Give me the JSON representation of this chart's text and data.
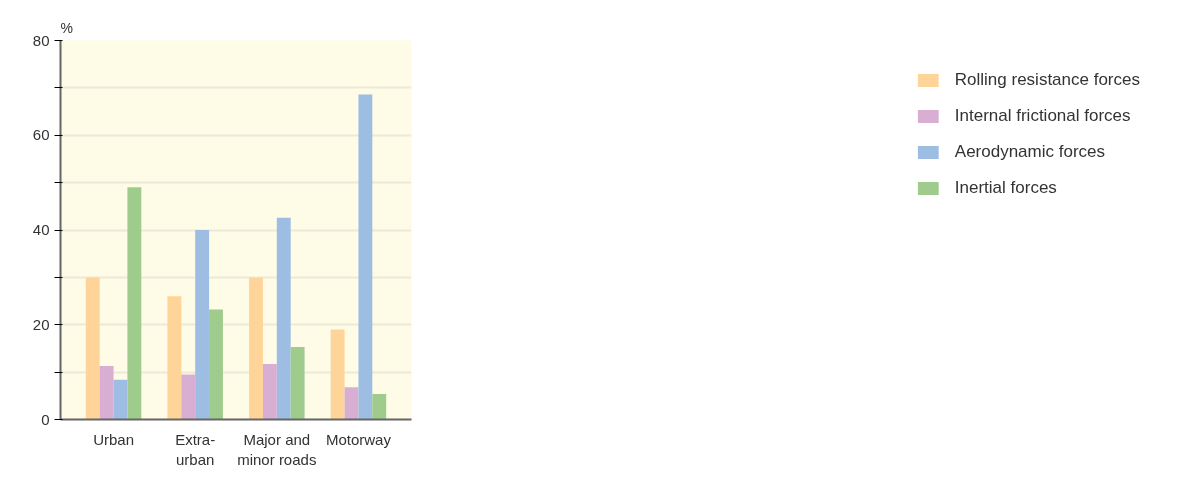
{
  "chart_data": {
    "type": "bar",
    "ylabel": "%",
    "categories": [
      "Urban",
      "Extra-\nurban",
      "Major and\nminor roads",
      "Motorway"
    ],
    "series": [
      {
        "name": "Rolling resistance forces",
        "color": "#fed498",
        "values": [
          30,
          26,
          30,
          19
        ]
      },
      {
        "name": "Internal frictional forces",
        "color": "#d8afd3",
        "values": [
          11.3,
          9.5,
          11.7,
          6.8
        ]
      },
      {
        "name": "Aerodynamic forces",
        "color": "#9dbde3",
        "values": [
          8.4,
          40,
          42.6,
          68.6
        ]
      },
      {
        "name": "Inertial forces",
        "color": "#9fcb8d",
        "values": [
          49,
          23.2,
          15.3,
          5.4
        ]
      }
    ],
    "ylim": [
      0,
      80
    ],
    "yticks": [
      0,
      {
        "value": 10,
        "label": null
      },
      20,
      {
        "value": 30,
        "label": null
      },
      40,
      {
        "value": 50,
        "label": null
      },
      60,
      {
        "value": 70,
        "label": null
      },
      80
    ],
    "grid": "y",
    "legend": "right"
  }
}
